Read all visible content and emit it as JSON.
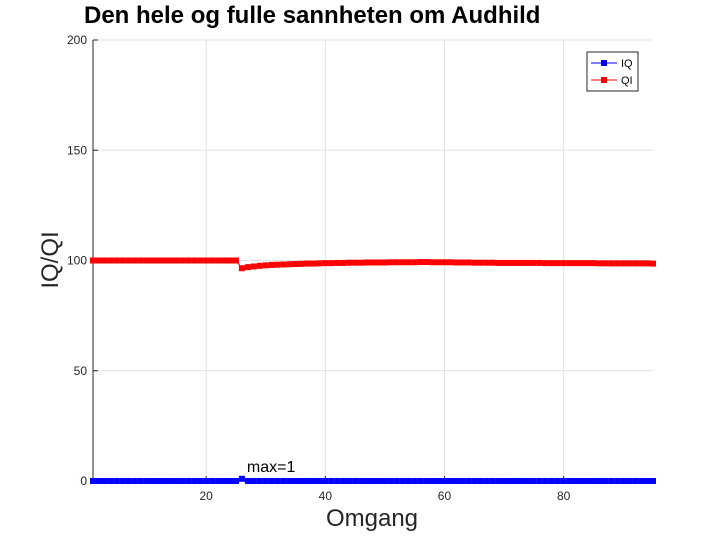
{
  "chart_data": {
    "type": "line",
    "title": "Den hele og fulle sannheten om Audhild",
    "xlabel": "Omgang",
    "ylabel": "IQ/QI",
    "xlim": [
      1,
      95
    ],
    "ylim": [
      0,
      200
    ],
    "xticks": [
      20,
      40,
      60,
      80
    ],
    "yticks": [
      0,
      50,
      100,
      150,
      200
    ],
    "grid": true,
    "legend_position": "top-right",
    "annotation": {
      "text": "max=1",
      "x": 27,
      "y": 5
    },
    "x": [
      1,
      2,
      3,
      4,
      5,
      6,
      7,
      8,
      9,
      10,
      11,
      12,
      13,
      14,
      15,
      16,
      17,
      18,
      19,
      20,
      21,
      22,
      23,
      24,
      25,
      26,
      27,
      28,
      29,
      30,
      31,
      32,
      33,
      34,
      35,
      36,
      37,
      38,
      39,
      40,
      41,
      42,
      43,
      44,
      45,
      46,
      47,
      48,
      49,
      50,
      51,
      52,
      53,
      54,
      55,
      56,
      57,
      58,
      59,
      60,
      61,
      62,
      63,
      64,
      65,
      66,
      67,
      68,
      69,
      70,
      71,
      72,
      73,
      74,
      75,
      76,
      77,
      78,
      79,
      80,
      81,
      82,
      83,
      84,
      85,
      86,
      87,
      88,
      89,
      90,
      91,
      92,
      93,
      94,
      95
    ],
    "series": [
      {
        "name": "IQ",
        "color": "#0000ff",
        "values": [
          0,
          0,
          0,
          0,
          0,
          0,
          0,
          0,
          0,
          0,
          0,
          0,
          0,
          0,
          0,
          0,
          0,
          0,
          0,
          0,
          0,
          0,
          0,
          0,
          0,
          1,
          0,
          0,
          0,
          0,
          0,
          0,
          0,
          0,
          0,
          0,
          0,
          0,
          0,
          0,
          0,
          0,
          0,
          0,
          0,
          0,
          0,
          0,
          0,
          0,
          0,
          0,
          0,
          0,
          0,
          0,
          0,
          0,
          0,
          0,
          0,
          0,
          0,
          0,
          0,
          0,
          0,
          0,
          0,
          0,
          0,
          0,
          0,
          0,
          0,
          0,
          0,
          0,
          0,
          0,
          0,
          0,
          0,
          0,
          0,
          0,
          0,
          0,
          0,
          0,
          0,
          0,
          0,
          0,
          0
        ]
      },
      {
        "name": "QI",
        "color": "#ff0000",
        "values": [
          100,
          100,
          100,
          100,
          100,
          100,
          100,
          100,
          100,
          100,
          100,
          100,
          100,
          100,
          100,
          100,
          100,
          100,
          100,
          100,
          100,
          100,
          100,
          100,
          100,
          96.5,
          97,
          97.3,
          97.6,
          97.8,
          98,
          98.1,
          98.2,
          98.3,
          98.4,
          98.5,
          98.6,
          98.6,
          98.7,
          98.8,
          98.8,
          98.9,
          98.9,
          99,
          99,
          99,
          99.1,
          99.1,
          99.1,
          99.1,
          99.2,
          99.2,
          99.2,
          99.2,
          99.2,
          99.3,
          99.3,
          99.2,
          99.2,
          99.2,
          99.2,
          99.1,
          99.1,
          99.1,
          99,
          99,
          99,
          99,
          98.9,
          98.9,
          98.9,
          98.9,
          98.9,
          98.9,
          98.9,
          98.9,
          98.8,
          98.8,
          98.8,
          98.8,
          98.8,
          98.8,
          98.8,
          98.8,
          98.8,
          98.7,
          98.7,
          98.7,
          98.7,
          98.7,
          98.7,
          98.7,
          98.7,
          98.7,
          98.6
        ]
      }
    ]
  }
}
